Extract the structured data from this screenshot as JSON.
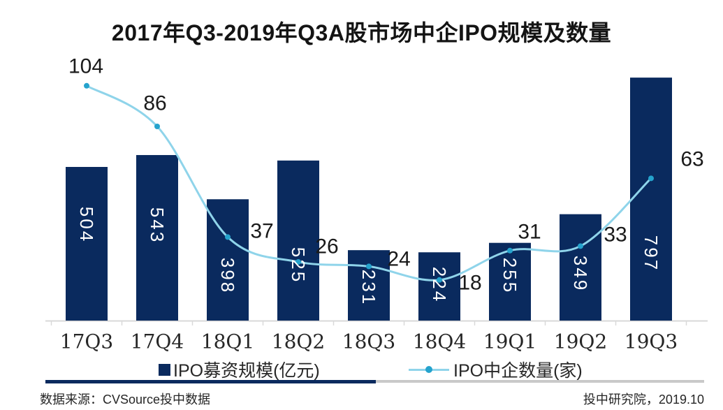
{
  "title": "2017年Q3-2019年Q3A股市场中企IPO规模及数量",
  "chart_data": {
    "type": "bar",
    "combo": [
      "bar",
      "line"
    ],
    "title": "2017年Q3-2019年Q3A股市场中企IPO规模及数量",
    "categories": [
      "17Q3",
      "17Q4",
      "18Q1",
      "18Q2",
      "18Q3",
      "18Q4",
      "19Q1",
      "19Q2",
      "19Q3"
    ],
    "series": [
      {
        "name": "IPO募资规模(亿元)",
        "type": "bar",
        "axis": "primary",
        "values": [
          504,
          543,
          398,
          525,
          231,
          224,
          255,
          349,
          797
        ],
        "color": "#0a2a5e",
        "data_label_color": "#ffffff",
        "data_label_rotation_deg": 90
      },
      {
        "name": "IPO中企数量(家)",
        "type": "line",
        "axis": "secondary",
        "smooth": true,
        "values": [
          104,
          86,
          37,
          26,
          24,
          18,
          31,
          33,
          63
        ],
        "color": "#8fd4ea",
        "marker_color": "#25a3cd",
        "data_label_color": "#1a1a1a"
      }
    ],
    "xlabel": "",
    "ylabel": "",
    "y_axes_visible": false,
    "grid": false,
    "data_labels": "all points",
    "legend_position": "bottom"
  },
  "legend": {
    "bar_item": "IPO募资规模(亿元)",
    "line_item": "IPO中企数量(家)"
  },
  "footer": {
    "source": "数据来源：CVSource投中数据",
    "credit": "投中研究院，2019.10"
  },
  "colors": {
    "bar": "#0a2a5e",
    "line": "#8fd4ea",
    "marker": "#25a3cd",
    "axis": "#d9d9d9",
    "divider_navy": "#0a2a5e",
    "divider_gray": "#c9c9c9",
    "text": "#1a1a1a"
  }
}
